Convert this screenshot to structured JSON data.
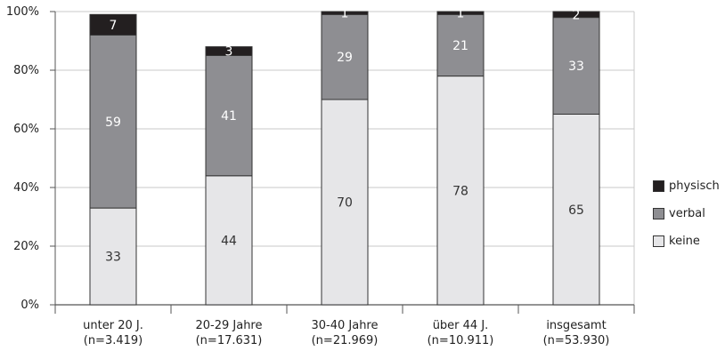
{
  "chart_data": {
    "type": "bar",
    "stacked": true,
    "orientation": "vertical",
    "categories": [
      {
        "line1": "unter 20 J.",
        "line2": "(n=3.419)"
      },
      {
        "line1": "20-29 Jahre",
        "line2": "(n=17.631)"
      },
      {
        "line1": "30-40 Jahre",
        "line2": "(n=21.969)"
      },
      {
        "line1": "über 44 J.",
        "line2": "(n=10.911)"
      },
      {
        "line1": "insgesamt",
        "line2": "(n=53.930)"
      }
    ],
    "series": [
      {
        "name": "keine",
        "color": "#e6e6e8",
        "label_color": "#333333",
        "values": [
          33,
          44,
          70,
          78,
          65
        ]
      },
      {
        "name": "verbal",
        "color": "#8e8e92",
        "label_color": "#ffffff",
        "values": [
          59,
          41,
          29,
          21,
          33
        ]
      },
      {
        "name": "physisch",
        "color": "#231f20",
        "label_color": "#ffffff",
        "values": [
          7,
          3,
          1,
          1,
          2
        ]
      }
    ],
    "y_ticks": [
      "0%",
      "20%",
      "40%",
      "60%",
      "80%",
      "100%"
    ],
    "ylim": [
      0,
      100
    ],
    "grid": true,
    "legend_position": "right"
  }
}
